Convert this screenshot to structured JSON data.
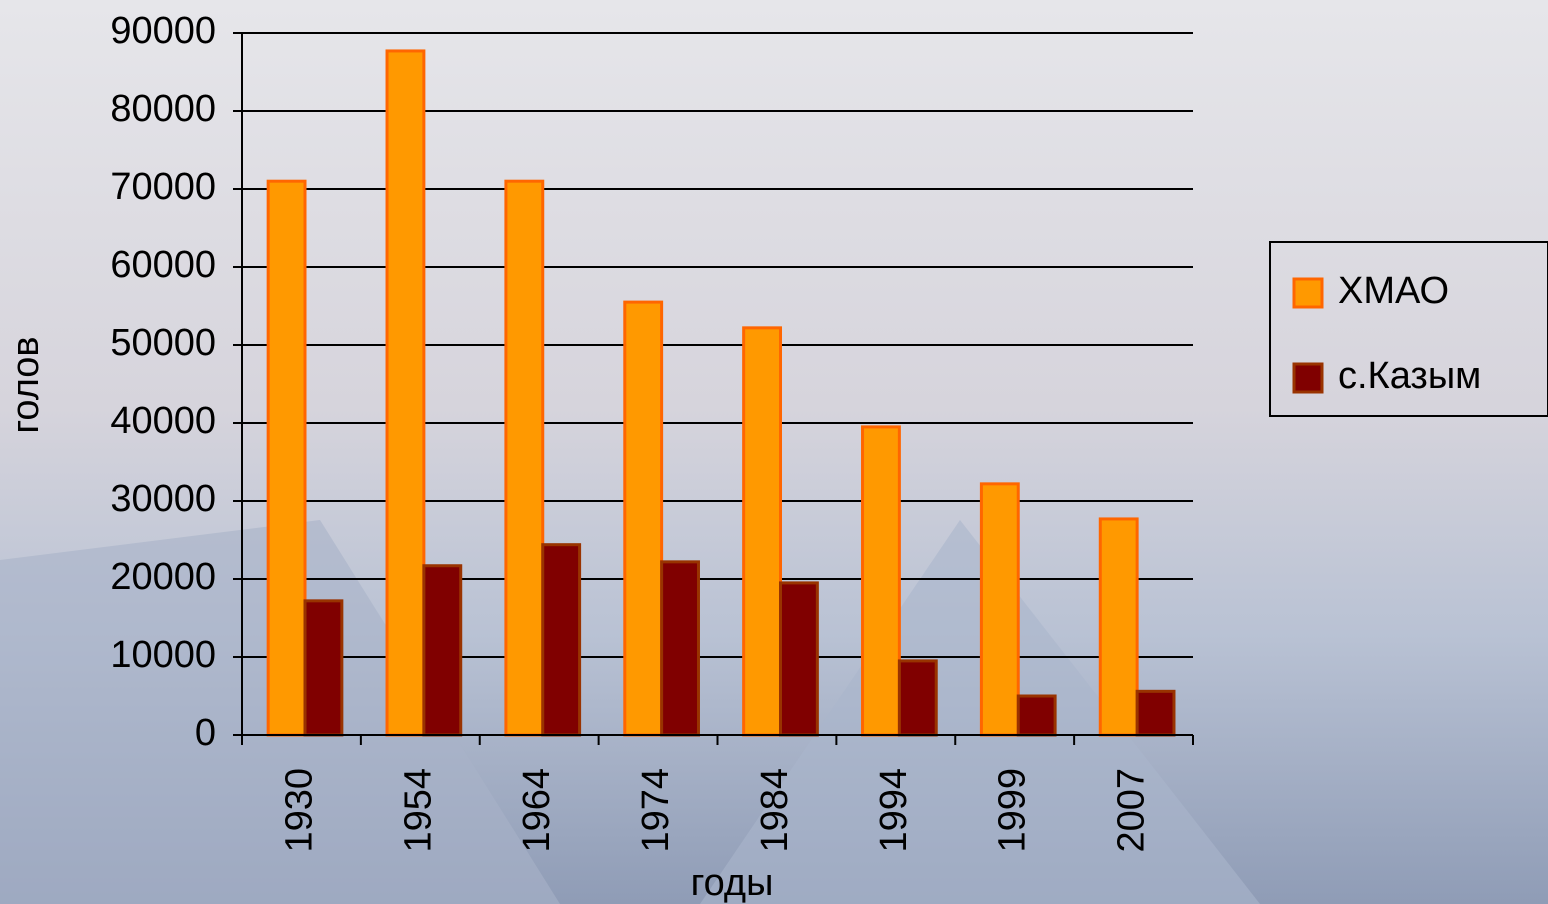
{
  "chart_data": {
    "type": "bar",
    "x_label": "годы",
    "y_label": "голов",
    "categories": [
      "1930",
      "1954",
      "1964",
      "1974",
      "1984",
      "1994",
      "1999",
      "2007"
    ],
    "series": [
      {
        "name": "ХМАО",
        "color": "#ff9900",
        "values": [
          71000,
          87700,
          71000,
          55500,
          52200,
          39500,
          32200,
          27700
        ]
      },
      {
        "name": "с.Казым",
        "color": "#800000",
        "values": [
          17200,
          21700,
          24400,
          22200,
          19500,
          9500,
          5000,
          5600
        ]
      }
    ],
    "ylim": [
      0,
      90000
    ],
    "yticks": [
      0,
      10000,
      20000,
      30000,
      40000,
      50000,
      60000,
      70000,
      80000,
      90000
    ],
    "grid": true,
    "legend": "right"
  }
}
